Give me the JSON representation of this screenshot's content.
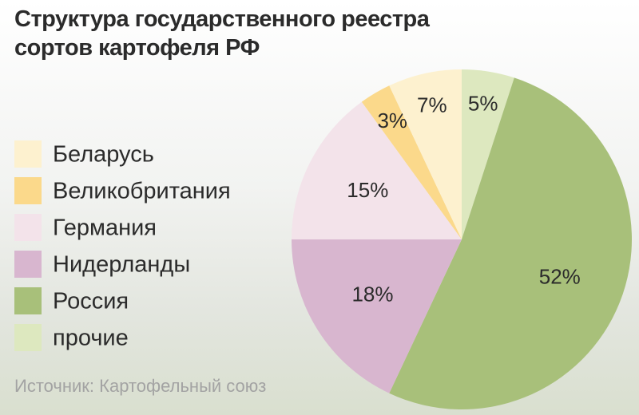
{
  "chart_data": {
    "type": "pie",
    "title": "Структура государственного реестра сортов картофеля РФ",
    "categories": [
      "Беларусь",
      "Великобритания",
      "Германия",
      "Нидерланды",
      "Россия",
      "прочие"
    ],
    "values": [
      7,
      3,
      15,
      18,
      52,
      5
    ],
    "value_labels": [
      "7%",
      "3%",
      "15%",
      "18%",
      "52%",
      "5%"
    ],
    "colors": [
      "#fdf1cf",
      "#fbd98b",
      "#f3e3ea",
      "#d8b6cf",
      "#a8c07a",
      "#dde8bf"
    ],
    "source": "Источник: Картофельный союз"
  }
}
